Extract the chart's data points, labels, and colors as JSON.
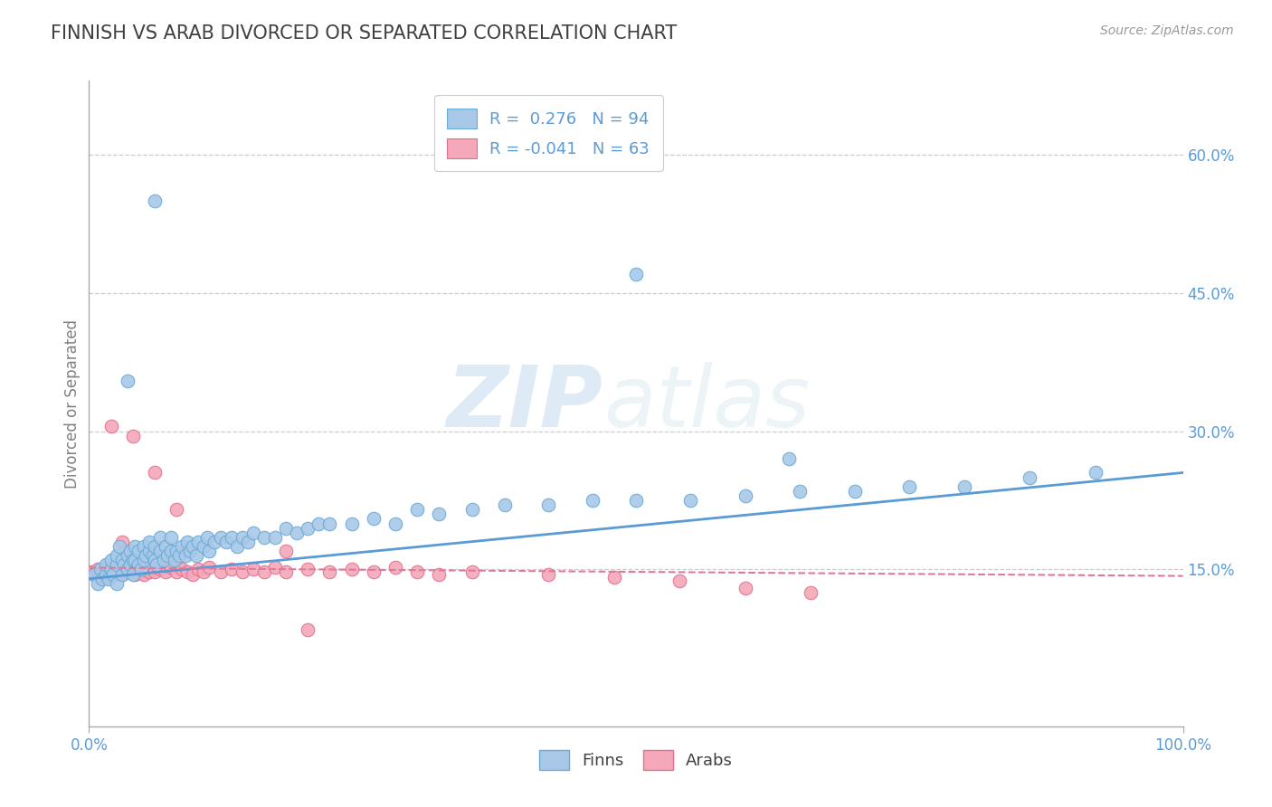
{
  "title": "FINNISH VS ARAB DIVORCED OR SEPARATED CORRELATION CHART",
  "source": "Source: ZipAtlas.com",
  "ylabel": "Divorced or Separated",
  "xlim": [
    0.0,
    1.0
  ],
  "ylim": [
    -0.02,
    0.68
  ],
  "yticks": [
    0.15,
    0.3,
    0.45,
    0.6
  ],
  "ytick_labels": [
    "15.0%",
    "30.0%",
    "45.0%",
    "60.0%"
  ],
  "xticks": [
    0.0,
    1.0
  ],
  "xtick_labels": [
    "0.0%",
    "100.0%"
  ],
  "finn_color": "#a8c8e8",
  "finn_edge_color": "#6aaad4",
  "arab_color": "#f4a8b8",
  "arab_edge_color": "#e07090",
  "finn_R": 0.276,
  "finn_N": 94,
  "arab_R": -0.041,
  "arab_N": 63,
  "finn_line_color": "#5b9bd5",
  "arab_line_color": "#e0789a",
  "grid_color": "#cccccc",
  "background_color": "#ffffff",
  "watermark_zip": "ZIP",
  "watermark_atlas": "atlas",
  "title_color": "#404040",
  "axis_label_color": "#5b9bd5",
  "ylabel_color": "#808080",
  "finn_line_y0": 0.14,
  "finn_line_y1": 0.255,
  "arab_line_y0": 0.152,
  "arab_line_y1": 0.143,
  "finn_scatter_x": [
    0.005,
    0.008,
    0.01,
    0.012,
    0.015,
    0.015,
    0.018,
    0.02,
    0.02,
    0.022,
    0.025,
    0.025,
    0.025,
    0.028,
    0.03,
    0.03,
    0.032,
    0.035,
    0.035,
    0.038,
    0.038,
    0.04,
    0.04,
    0.042,
    0.042,
    0.045,
    0.045,
    0.048,
    0.05,
    0.05,
    0.052,
    0.055,
    0.055,
    0.058,
    0.06,
    0.06,
    0.062,
    0.065,
    0.065,
    0.068,
    0.07,
    0.072,
    0.075,
    0.075,
    0.078,
    0.08,
    0.082,
    0.085,
    0.088,
    0.09,
    0.092,
    0.095,
    0.098,
    0.1,
    0.105,
    0.108,
    0.11,
    0.115,
    0.12,
    0.125,
    0.13,
    0.135,
    0.14,
    0.145,
    0.15,
    0.16,
    0.17,
    0.18,
    0.19,
    0.2,
    0.21,
    0.22,
    0.24,
    0.26,
    0.28,
    0.3,
    0.32,
    0.35,
    0.38,
    0.42,
    0.46,
    0.5,
    0.55,
    0.6,
    0.65,
    0.7,
    0.75,
    0.8,
    0.86,
    0.92,
    0.5,
    0.64,
    0.035,
    0.06
  ],
  "finn_scatter_y": [
    0.145,
    0.135,
    0.15,
    0.14,
    0.145,
    0.155,
    0.14,
    0.15,
    0.16,
    0.145,
    0.155,
    0.165,
    0.135,
    0.175,
    0.145,
    0.16,
    0.155,
    0.15,
    0.165,
    0.155,
    0.17,
    0.16,
    0.145,
    0.16,
    0.175,
    0.155,
    0.17,
    0.15,
    0.16,
    0.175,
    0.165,
    0.17,
    0.18,
    0.165,
    0.16,
    0.175,
    0.155,
    0.17,
    0.185,
    0.16,
    0.175,
    0.165,
    0.17,
    0.185,
    0.16,
    0.17,
    0.165,
    0.175,
    0.165,
    0.18,
    0.17,
    0.175,
    0.165,
    0.18,
    0.175,
    0.185,
    0.17,
    0.18,
    0.185,
    0.18,
    0.185,
    0.175,
    0.185,
    0.18,
    0.19,
    0.185,
    0.185,
    0.195,
    0.19,
    0.195,
    0.2,
    0.2,
    0.2,
    0.205,
    0.2,
    0.215,
    0.21,
    0.215,
    0.22,
    0.22,
    0.225,
    0.225,
    0.225,
    0.23,
    0.235,
    0.235,
    0.24,
    0.24,
    0.25,
    0.255,
    0.47,
    0.27,
    0.355,
    0.55
  ],
  "arab_scatter_x": [
    0.002,
    0.005,
    0.008,
    0.01,
    0.012,
    0.015,
    0.015,
    0.018,
    0.02,
    0.022,
    0.025,
    0.025,
    0.028,
    0.03,
    0.032,
    0.035,
    0.038,
    0.04,
    0.042,
    0.045,
    0.048,
    0.05,
    0.052,
    0.055,
    0.058,
    0.06,
    0.065,
    0.07,
    0.075,
    0.08,
    0.085,
    0.09,
    0.095,
    0.1,
    0.105,
    0.11,
    0.12,
    0.13,
    0.14,
    0.15,
    0.16,
    0.17,
    0.18,
    0.2,
    0.22,
    0.24,
    0.26,
    0.28,
    0.3,
    0.32,
    0.04,
    0.06,
    0.08,
    0.18,
    0.35,
    0.42,
    0.48,
    0.54,
    0.6,
    0.66,
    0.02,
    0.03,
    0.2
  ],
  "arab_scatter_y": [
    0.148,
    0.145,
    0.15,
    0.142,
    0.148,
    0.145,
    0.152,
    0.148,
    0.152,
    0.145,
    0.15,
    0.155,
    0.148,
    0.145,
    0.15,
    0.148,
    0.152,
    0.148,
    0.145,
    0.152,
    0.148,
    0.145,
    0.15,
    0.148,
    0.152,
    0.148,
    0.15,
    0.148,
    0.152,
    0.148,
    0.15,
    0.148,
    0.145,
    0.15,
    0.148,
    0.152,
    0.148,
    0.15,
    0.148,
    0.15,
    0.148,
    0.152,
    0.148,
    0.15,
    0.148,
    0.15,
    0.148,
    0.152,
    0.148,
    0.145,
    0.295,
    0.255,
    0.215,
    0.17,
    0.148,
    0.145,
    0.142,
    0.138,
    0.13,
    0.125,
    0.305,
    0.18,
    0.085
  ]
}
